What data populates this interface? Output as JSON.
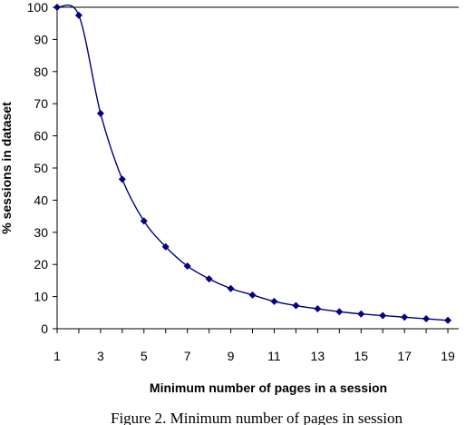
{
  "chart_data": {
    "type": "line",
    "xlabel": "Minimum number of pages in a session",
    "ylabel": "% sessions in dataset",
    "caption": "Figure 2.   Minimum number of pages in session",
    "xlim": [
      1,
      19.5
    ],
    "ylim": [
      0,
      100
    ],
    "x_ticks": [
      1,
      3,
      5,
      7,
      9,
      11,
      13,
      15,
      17,
      19
    ],
    "y_ticks": [
      0,
      10,
      20,
      30,
      40,
      50,
      60,
      70,
      80,
      90,
      100
    ],
    "grid": false,
    "legend": "none",
    "line_color": "#000080",
    "series": [
      {
        "x": [
          1,
          2,
          3,
          4,
          5,
          6,
          7,
          8,
          9,
          10,
          11,
          12,
          13,
          14,
          15,
          16,
          17,
          18,
          19
        ],
        "values": [
          100,
          97.5,
          67,
          46.5,
          33.5,
          25.5,
          19.5,
          15.5,
          12.5,
          10.5,
          8.5,
          7.2,
          6.2,
          5.3,
          4.6,
          4.1,
          3.6,
          3.1,
          2.6
        ]
      }
    ]
  }
}
